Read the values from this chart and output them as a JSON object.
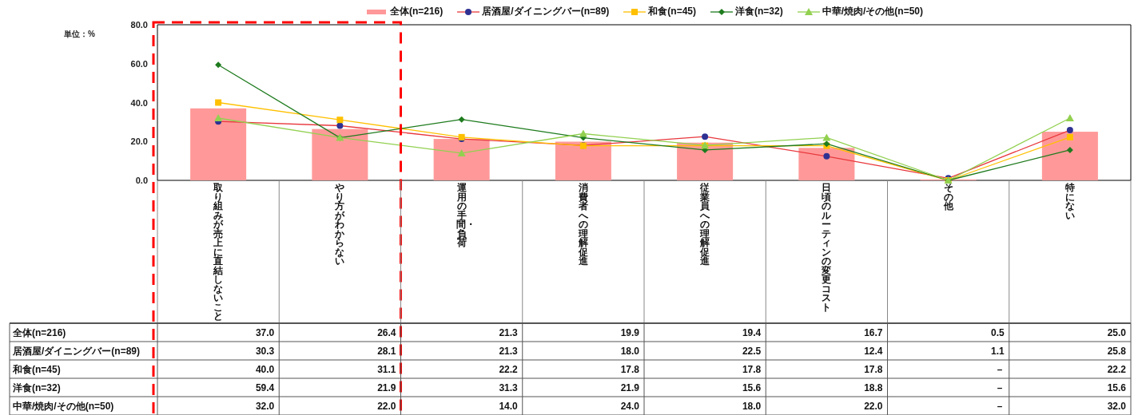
{
  "chart_data": {
    "type": "bar",
    "categories": [
      "取り組みが売上に直結しないこと",
      "やり方がわからない",
      "運用の手間・負荷",
      "消費者への理解促進",
      "従業員への理解促進",
      "日頃のルーティンの変更コスト",
      "その他",
      "特にない"
    ],
    "series": [
      {
        "name": "全体(n=216)",
        "color": "#ff9999",
        "values": [
          37.0,
          26.4,
          21.3,
          19.9,
          19.4,
          16.7,
          0.5,
          25.0
        ],
        "value_labels": [
          "37.0",
          "26.4",
          "21.3",
          "19.9",
          "19.4",
          "16.7",
          "0.5",
          "25.0"
        ]
      },
      {
        "name": "居酒屋/ダイニングバー(n=89)",
        "type": "line",
        "color": "#e8383d",
        "colors": [
          "#2e3192",
          "#2e3192",
          "#2e3192",
          "#2e3192",
          "#2e3192",
          "#2e3192",
          "#2e3192",
          "#2e3192"
        ],
        "marker": "circle",
        "values": [
          30.3,
          28.1,
          21.3,
          18.0,
          22.5,
          12.4,
          1.1,
          25.8
        ],
        "value_labels": [
          "30.3",
          "28.1",
          "21.3",
          "18.0",
          "22.5",
          "12.4",
          "1.1",
          "25.8"
        ]
      },
      {
        "name": "和食(n=45)",
        "type": "line",
        "color": "#ffc000",
        "marker": "square",
        "values": [
          40.0,
          31.1,
          22.2,
          17.8,
          17.8,
          17.8,
          0,
          22.2
        ],
        "value_labels": [
          "40.0",
          "31.1",
          "22.2",
          "17.8",
          "17.8",
          "17.8",
          "－",
          "22.2"
        ]
      },
      {
        "name": "洋食(n=32)",
        "type": "line",
        "color": "#1e7b1e",
        "marker": "diamond",
        "values": [
          59.4,
          21.9,
          31.3,
          21.9,
          15.6,
          18.8,
          0,
          15.6
        ],
        "value_labels": [
          "59.4",
          "21.9",
          "31.3",
          "21.9",
          "15.6",
          "18.8",
          "－",
          "15.6"
        ]
      },
      {
        "name": "中華/焼肉/その他(n=50)",
        "type": "line",
        "color": "#92d050",
        "marker": "triangle",
        "values": [
          32.0,
          22.0,
          14.0,
          24.0,
          18.0,
          22.0,
          0,
          32.0
        ],
        "value_labels": [
          "32.0",
          "22.0",
          "14.0",
          "24.0",
          "18.0",
          "22.0",
          "－",
          "32.0"
        ]
      }
    ],
    "ylim": [
      0,
      80
    ],
    "yticks": [
      {
        "value": 0,
        "label": "0.0"
      },
      {
        "value": 20,
        "label": "20.0"
      },
      {
        "value": 40,
        "label": "40.0"
      },
      {
        "value": 60,
        "label": "60.0"
      },
      {
        "value": 80,
        "label": "80.0"
      }
    ],
    "annotations": [
      "単位：%"
    ],
    "legend": "top"
  }
}
